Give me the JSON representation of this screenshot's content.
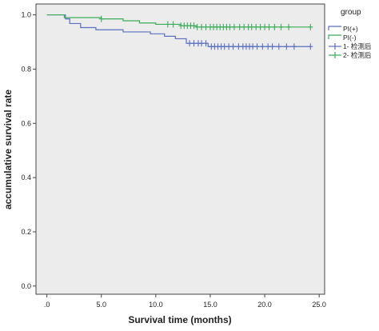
{
  "chart_data": {
    "type": "line",
    "subtype": "kaplan-meier-step",
    "xlabel": "Survival time (months)",
    "ylabel": "accumulative survival rate",
    "xlim": [
      -1,
      25.5
    ],
    "ylim": [
      -0.03,
      1.04
    ],
    "x_ticks": [
      0,
      5,
      10,
      15,
      20,
      25
    ],
    "x_tick_labels": [
      ".0",
      "5.0",
      "10.0",
      "15.0",
      "20.0",
      "25.0"
    ],
    "y_ticks": [
      0,
      0.2,
      0.4,
      0.6,
      0.8,
      1.0
    ],
    "y_tick_labels": [
      "0.0",
      "0.2",
      "0.4",
      "0.6",
      "0.8",
      "1.0"
    ],
    "grid": false,
    "plot_background": "#ececec",
    "legend": {
      "title": "group",
      "placement": "right-top",
      "entries": [
        "PI(+)",
        "PI(-)",
        "1- 检测后",
        "2- 检测后"
      ]
    },
    "series": [
      {
        "name": "PI(+)",
        "color": "#5a6fbf",
        "censor_label": "1- 检测后",
        "steps": [
          [
            0,
            1.0
          ],
          [
            1.7,
            0.985
          ],
          [
            2.1,
            0.968
          ],
          [
            3.1,
            0.953
          ],
          [
            4.5,
            0.945
          ],
          [
            7.0,
            0.937
          ],
          [
            9.5,
            0.93
          ],
          [
            10.8,
            0.921
          ],
          [
            11.8,
            0.912
          ],
          [
            12.8,
            0.895
          ],
          [
            14.8,
            0.883
          ],
          [
            24.3,
            0.883
          ]
        ],
        "censored": [
          13.1,
          13.5,
          13.9,
          14.2,
          14.6,
          15.1,
          15.4,
          15.7,
          16.0,
          16.3,
          16.7,
          17.1,
          17.6,
          18.0,
          18.3,
          18.6,
          18.9,
          19.3,
          19.8,
          20.3,
          20.7,
          21.3,
          22.0,
          22.7,
          24.2
        ]
      },
      {
        "name": "PI(-)",
        "color": "#3aab5a",
        "censor_label": "2- 检测后",
        "steps": [
          [
            0,
            1.0
          ],
          [
            1.6,
            0.99
          ],
          [
            5.0,
            0.985
          ],
          [
            7.0,
            0.978
          ],
          [
            8.5,
            0.97
          ],
          [
            10.0,
            0.965
          ],
          [
            12.3,
            0.96
          ],
          [
            13.7,
            0.955
          ],
          [
            24.3,
            0.955
          ]
        ],
        "censored": [
          5.0,
          11.1,
          11.6,
          12.3,
          12.6,
          12.9,
          13.2,
          13.5,
          13.8,
          14.2,
          14.6,
          15.0,
          15.3,
          15.6,
          15.9,
          16.2,
          16.5,
          16.8,
          17.2,
          17.7,
          18.1,
          18.5,
          18.8,
          19.2,
          19.6,
          20.0,
          20.4,
          20.9,
          21.5,
          22.2,
          24.2
        ]
      }
    ]
  }
}
